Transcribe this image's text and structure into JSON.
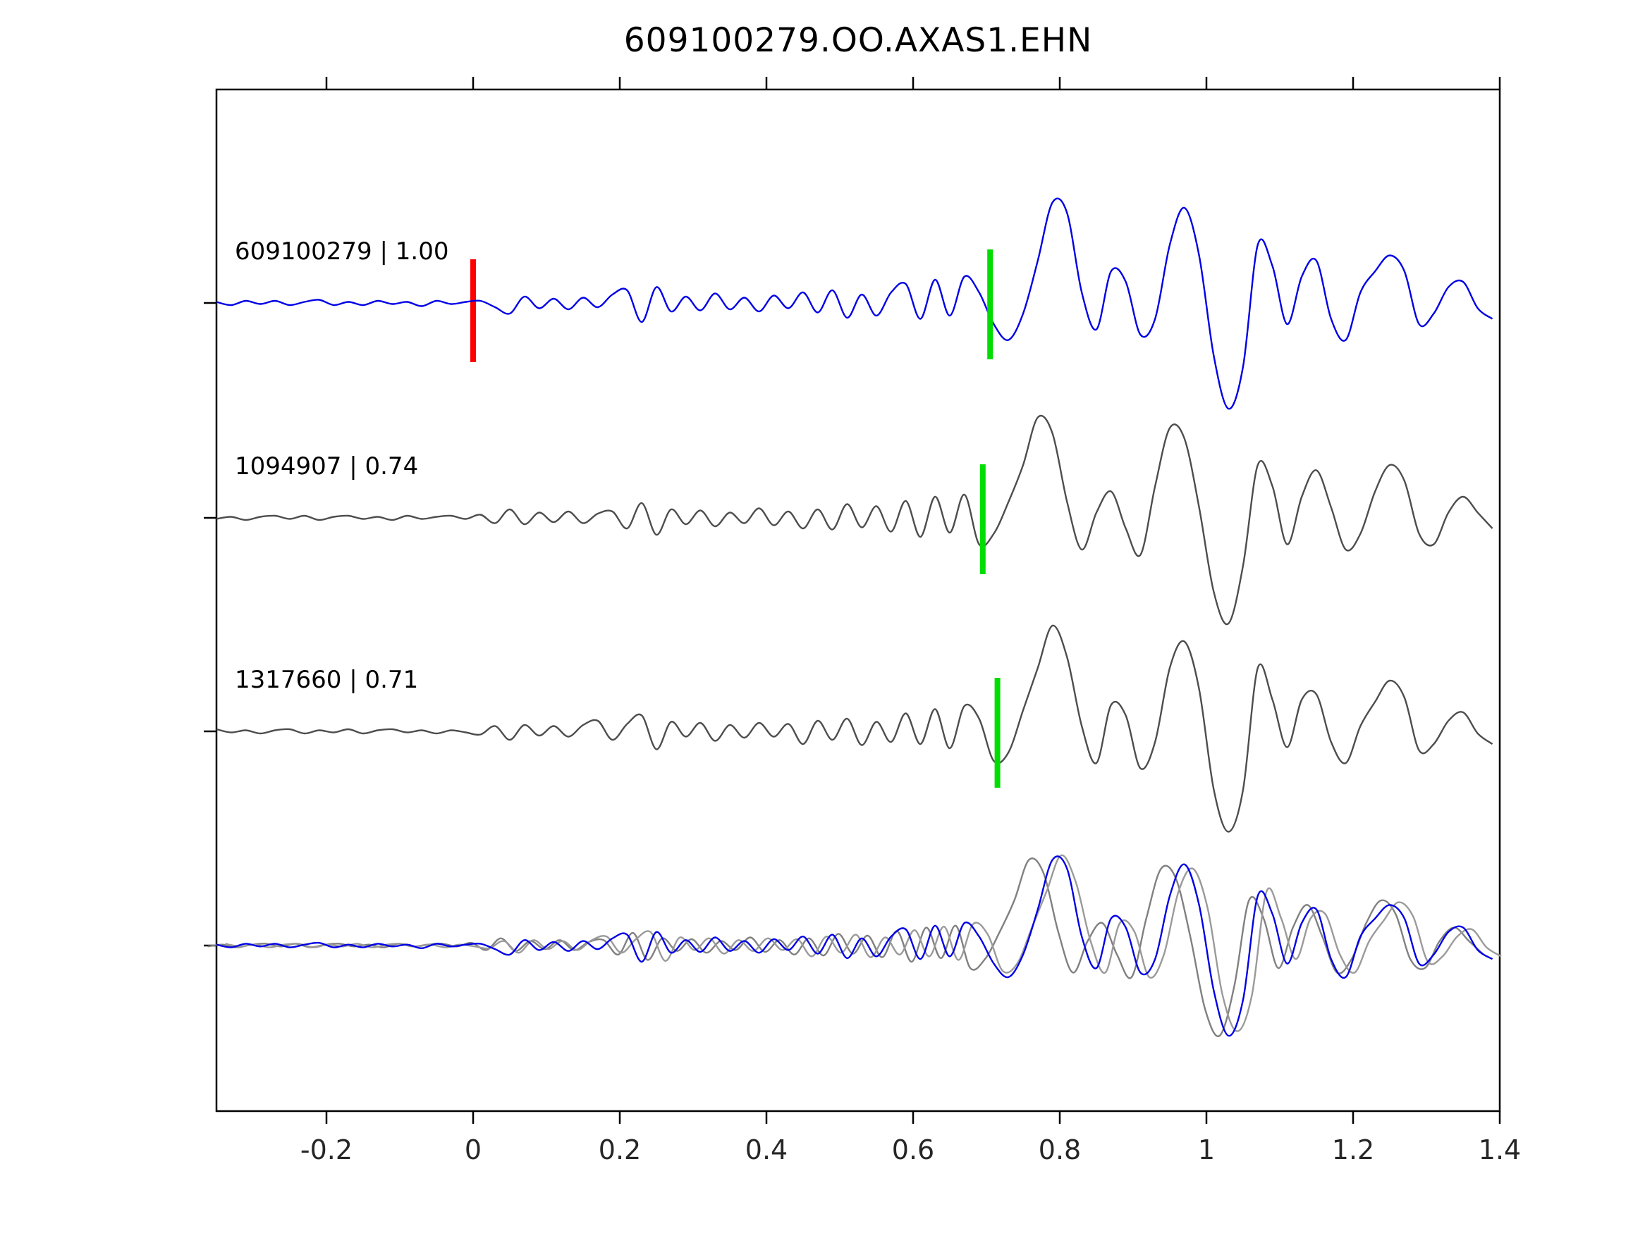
{
  "title": "609100279.OO.AXAS1.EHN",
  "chart_data": {
    "type": "line",
    "title": "609100279.OO.AXAS1.EHN",
    "xlabel": "",
    "ylabel": "",
    "grid": false,
    "legend": "none",
    "xlim": [
      -0.35,
      1.4
    ],
    "x_tick_values": [
      -0.2,
      0,
      0.2,
      0.4,
      0.6,
      0.8,
      1,
      1.2,
      1.4
    ],
    "x_tick_labels": [
      "-0.2",
      "0",
      "0.2",
      "0.4",
      "0.6",
      "0.8",
      "1",
      "1.2",
      "1.4"
    ],
    "x0": -0.35,
    "dx": 0.02,
    "colors": {
      "primary_trace": "#0000e6",
      "reference_trace": "#4d4d4d",
      "overlay_gray_1": "#808080",
      "overlay_gray_2": "#9a9a9a",
      "pick_red": "#ff0000",
      "pick_green": "#00dd00",
      "axis": "#000000"
    },
    "traces": [
      {
        "id": "609100279",
        "label": "609100279 | 1.00",
        "correlation": 1.0,
        "row": 0,
        "color_key": "primary_trace",
        "pick_red": 0.0,
        "pick_green": 0.705,
        "y": [
          0.01,
          -0.02,
          0.02,
          -0.01,
          0.02,
          -0.02,
          0.01,
          0.03,
          -0.02,
          0.01,
          -0.02,
          0.02,
          -0.01,
          0.01,
          -0.03,
          0.02,
          -0.01,
          0.01,
          0.02,
          -0.04,
          -0.1,
          0.06,
          -0.05,
          0.04,
          -0.06,
          0.05,
          -0.04,
          0.08,
          0.12,
          -0.18,
          0.15,
          -0.08,
          0.06,
          -0.07,
          0.09,
          -0.06,
          0.05,
          -0.08,
          0.07,
          -0.05,
          0.1,
          -0.09,
          0.12,
          -0.14,
          0.08,
          -0.12,
          0.1,
          0.18,
          -0.15,
          0.22,
          -0.12,
          0.25,
          0.1,
          -0.2,
          -0.35,
          -0.1,
          0.4,
          0.95,
          0.85,
          0.1,
          -0.25,
          0.3,
          0.2,
          -0.3,
          -0.15,
          0.55,
          0.9,
          0.45,
          -0.5,
          -1.0,
          -0.6,
          0.55,
          0.35,
          -0.2,
          0.25,
          0.4,
          -0.15,
          -0.35,
          0.1,
          0.3,
          0.45,
          0.3,
          -0.2,
          -0.1,
          0.15,
          0.2,
          -0.05,
          -0.15
        ]
      },
      {
        "id": "1094907",
        "label": "1094907 | 0.74",
        "correlation": 0.74,
        "row": 1,
        "color_key": "reference_trace",
        "pick_green": 0.695,
        "y": [
          -0.01,
          0.01,
          -0.02,
          0.01,
          0.02,
          -0.01,
          0.02,
          -0.02,
          0.01,
          0.02,
          -0.01,
          0.01,
          -0.02,
          0.02,
          -0.01,
          0.01,
          0.02,
          -0.01,
          0.03,
          -0.05,
          0.08,
          -0.06,
          0.05,
          -0.04,
          0.06,
          -0.05,
          0.04,
          0.06,
          -0.1,
          0.14,
          -0.16,
          0.08,
          -0.06,
          0.07,
          -0.08,
          0.05,
          -0.05,
          0.09,
          -0.07,
          0.06,
          -0.1,
          0.08,
          -0.11,
          0.13,
          -0.09,
          0.11,
          -0.13,
          0.16,
          -0.18,
          0.2,
          -0.14,
          0.22,
          -0.25,
          -0.15,
          0.15,
          0.5,
          0.95,
          0.8,
          0.15,
          -0.3,
          0.05,
          0.25,
          -0.1,
          -0.35,
          0.3,
          0.85,
          0.75,
          0.1,
          -0.7,
          -1.0,
          -0.45,
          0.5,
          0.3,
          -0.25,
          0.2,
          0.45,
          0.1,
          -0.3,
          -0.15,
          0.25,
          0.5,
          0.35,
          -0.15,
          -0.25,
          0.05,
          0.2,
          0.05,
          -0.1
        ]
      },
      {
        "id": "1317660",
        "label": "1317660 | 0.71",
        "correlation": 0.71,
        "row": 2,
        "color_key": "reference_trace",
        "pick_green": 0.715,
        "y": [
          0.02,
          -0.01,
          0.01,
          -0.02,
          0.01,
          0.02,
          -0.02,
          0.01,
          -0.01,
          0.02,
          -0.02,
          0.01,
          0.02,
          -0.01,
          0.01,
          -0.02,
          0.01,
          -0.01,
          -0.03,
          0.05,
          -0.08,
          0.06,
          -0.04,
          0.05,
          -0.05,
          0.06,
          0.1,
          -0.08,
          0.07,
          0.15,
          -0.17,
          0.09,
          -0.05,
          0.08,
          -0.09,
          0.06,
          -0.06,
          0.08,
          -0.05,
          0.07,
          -0.12,
          0.1,
          -0.08,
          0.12,
          -0.13,
          0.09,
          -0.1,
          0.17,
          -0.12,
          0.21,
          -0.16,
          0.24,
          0.12,
          -0.28,
          -0.2,
          0.2,
          0.6,
          1.0,
          0.7,
          0.05,
          -0.3,
          0.25,
          0.15,
          -0.35,
          -0.1,
          0.6,
          0.85,
          0.4,
          -0.55,
          -0.95,
          -0.55,
          0.6,
          0.3,
          -0.15,
          0.3,
          0.35,
          -0.1,
          -0.3,
          0.05,
          0.28,
          0.48,
          0.32,
          -0.18,
          -0.12,
          0.1,
          0.18,
          -0.02,
          -0.12
        ]
      }
    ],
    "overlay": {
      "row": 3,
      "series": [
        {
          "trace": 1,
          "color_key": "overlay_gray_1",
          "dt": -0.012
        },
        {
          "trace": 2,
          "color_key": "overlay_gray_2",
          "dt": 0.012
        },
        {
          "trace": 0,
          "color_key": "primary_trace",
          "dt": 0
        }
      ]
    }
  }
}
